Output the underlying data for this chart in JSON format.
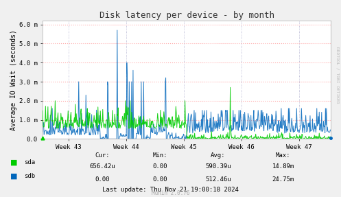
{
  "title": "Disk latency per device - by month",
  "ylabel": "Average IO Wait (seconds)",
  "background_color": "#f0f0f0",
  "plot_bg_color": "#ffffff",
  "grid_color_h": "#ffaaaa",
  "grid_color_v": "#aaaacc",
  "ylim": [
    0.0,
    0.0062
  ],
  "yticks": [
    0.0,
    0.001,
    0.002,
    0.003,
    0.004,
    0.005,
    0.006
  ],
  "ytick_labels": [
    "0.0",
    "1.0 m",
    "2.0 m",
    "3.0 m",
    "4.0 m",
    "5.0 m",
    "6.0 m"
  ],
  "xtick_labels": [
    "Week 43",
    "Week 44",
    "Week 45",
    "Week 46",
    "Week 47"
  ],
  "sda_color": "#00cc00",
  "sdb_color": "#0066bb",
  "munin_text": "Munin 2.0.76",
  "rrdtool_text": "RRDTOOL / TOBI OETIKER"
}
